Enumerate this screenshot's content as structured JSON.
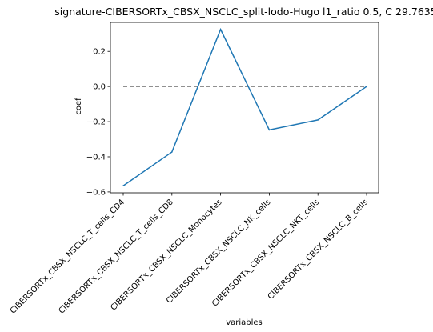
{
  "chart_data": {
    "type": "line",
    "title": "signature-CIBERSORTx_CBSX_NSCLC_split-lodo-Hugo l1_ratio 0.5, C 29.7635",
    "xlabel": "variables",
    "ylabel": "coef",
    "categories": [
      "CIBERSORTx_CBSX_NSCLC_T_cells_CD4",
      "CIBERSORTx_CBSX_NSCLC_T_cells_CD8",
      "CIBERSORTx_CBSX_NSCLC_Monocytes",
      "CIBERSORTx_CBSX_NSCLC_NK_cells",
      "CIBERSORTx_CBSX_NSCLC_NKT_cells",
      "CIBERSORTx_CBSX_NSCLC_B_cells"
    ],
    "series": [
      {
        "values": [
          -0.565,
          -0.373,
          0.325,
          -0.247,
          -0.19,
          0.0
        ],
        "color": "#1f77b4"
      }
    ],
    "reference_line": {
      "y": 0.0,
      "style": "dashed",
      "color": "#808080"
    },
    "ylim": [
      -0.605,
      0.365
    ],
    "yticks": [
      -0.6,
      -0.4,
      -0.2,
      0.0,
      0.2
    ],
    "ytick_labels": [
      "−0.6",
      "−0.4",
      "−0.2",
      "0.0",
      "0.2"
    ],
    "grid": false
  }
}
